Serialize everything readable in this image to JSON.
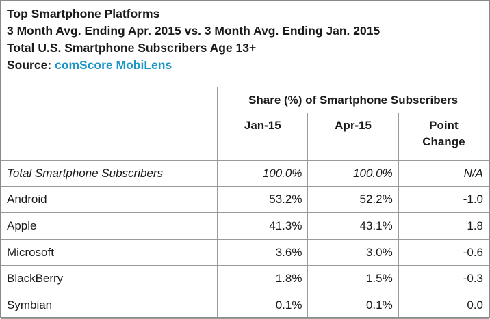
{
  "header": {
    "title": "Top Smartphone Platforms",
    "subtitle": "3 Month Avg. Ending Apr. 2015 vs. 3 Month Avg. Ending Jan. 2015",
    "population": "Total U.S. Smartphone Subscribers Age 13+",
    "source_label": "Source:",
    "source_name": "comScore MobiLens"
  },
  "table": {
    "group_header": "Share (%) of Smartphone Subscribers",
    "columns": [
      "Jan-15",
      "Apr-15",
      "Point\nChange"
    ],
    "rows": [
      {
        "label": "Total Smartphone Subscribers",
        "jan": "100.0%",
        "apr": "100.0%",
        "change": "N/A"
      },
      {
        "label": "Android",
        "jan": "53.2%",
        "apr": "52.2%",
        "change": "-1.0"
      },
      {
        "label": "Apple",
        "jan": "41.3%",
        "apr": "43.1%",
        "change": "1.8"
      },
      {
        "label": "Microsoft",
        "jan": "3.6%",
        "apr": "3.0%",
        "change": "-0.6"
      },
      {
        "label": "BlackBerry",
        "jan": "1.8%",
        "apr": "1.5%",
        "change": "-0.3"
      },
      {
        "label": "Symbian",
        "jan": "0.1%",
        "apr": "0.1%",
        "change": "0.0"
      }
    ]
  },
  "colors": {
    "source_link": "#1b96c6",
    "border": "#9a9a9a"
  }
}
